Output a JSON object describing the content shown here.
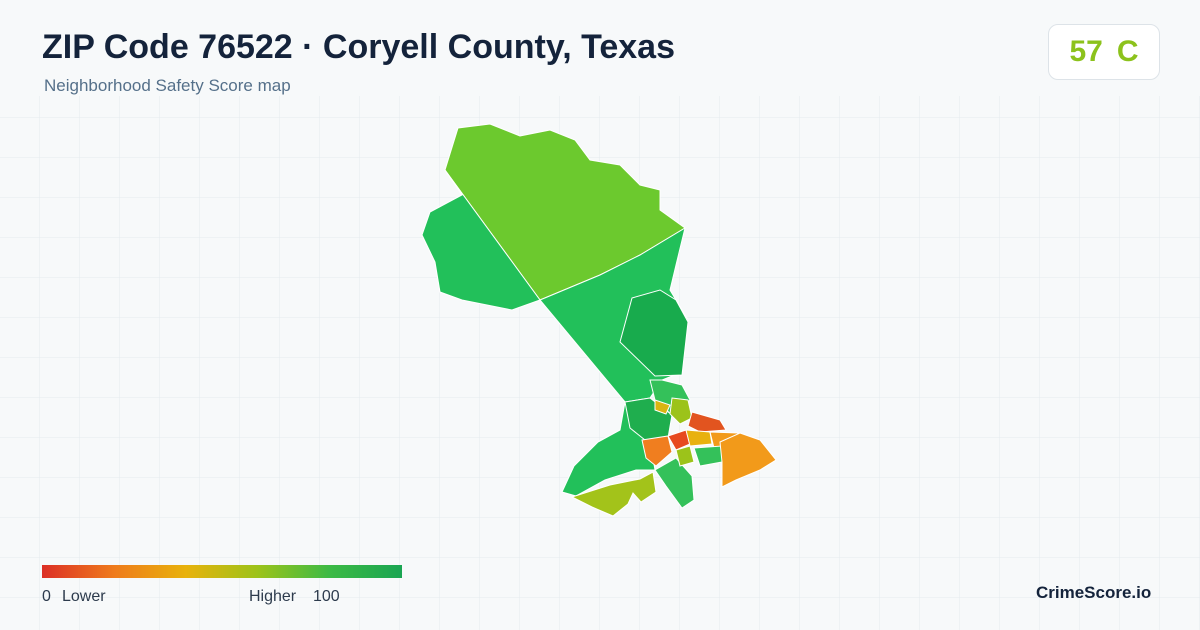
{
  "header": {
    "title": "ZIP Code 76522 · Coryell County, Texas",
    "subtitle": "Neighborhood Safety Score map"
  },
  "score": {
    "value": 57,
    "grade": "C"
  },
  "legend": {
    "min": 0,
    "min_label": "Lower",
    "max_label": "Higher",
    "max": 100
  },
  "brand": "CrimeScore.io"
}
